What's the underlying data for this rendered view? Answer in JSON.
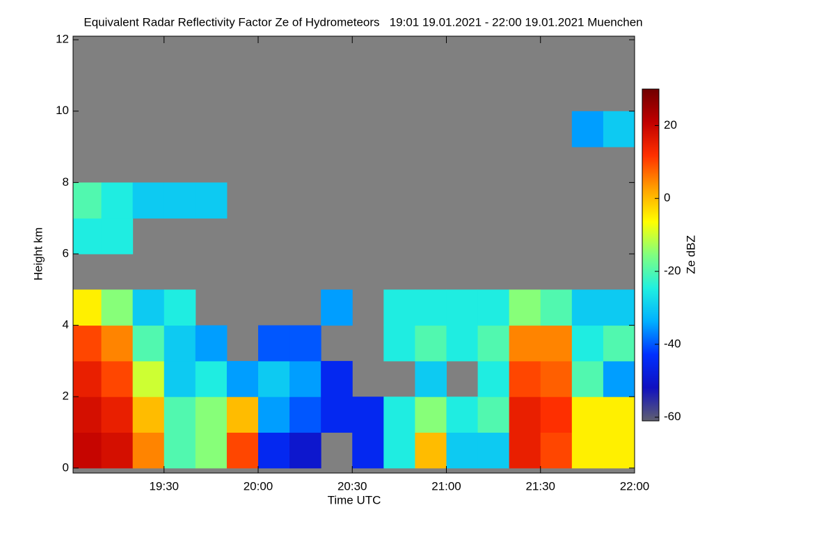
{
  "chart_data": {
    "type": "heatmap",
    "title": "Equivalent Radar Reflectivity Factor Ze of Hydrometeors   19:01 19.01.2021 - 22:00 19.01.2021 Muenchen",
    "x_label": "Time UTC",
    "y_label": "Height km",
    "colorbar_label": "Ze dBZ",
    "x_edges": [
      "19:01",
      "19:10",
      "19:20",
      "19:30",
      "19:40",
      "19:50",
      "20:00",
      "20:10",
      "20:20",
      "20:30",
      "20:40",
      "20:50",
      "21:00",
      "21:10",
      "21:20",
      "21:30",
      "21:40",
      "21:50",
      "22:00"
    ],
    "y_edges": [
      0,
      1,
      2,
      3,
      4,
      5,
      6,
      7,
      8,
      9,
      10,
      11,
      12
    ],
    "values": [
      [
        20,
        18,
        5,
        -20,
        -15,
        10,
        -45,
        -50,
        null,
        -45,
        -25,
        0,
        -30,
        -30,
        15,
        10,
        -5,
        -5
      ],
      [
        18,
        15,
        0,
        -20,
        -15,
        0,
        -35,
        -40,
        -45,
        -45,
        -25,
        -15,
        -25,
        -20,
        15,
        12,
        -5,
        -5
      ],
      [
        15,
        10,
        -10,
        -30,
        -25,
        -35,
        -30,
        -35,
        -45,
        null,
        null,
        -30,
        null,
        -25,
        10,
        8,
        -20,
        -35
      ],
      [
        10,
        5,
        -20,
        -30,
        -35,
        null,
        -40,
        -40,
        null,
        null,
        -25,
        -20,
        -25,
        -20,
        5,
        5,
        -25,
        -20
      ],
      [
        -5,
        -15,
        -30,
        -25,
        null,
        null,
        null,
        null,
        -35,
        null,
        -25,
        -25,
        -25,
        -25,
        -15,
        -20,
        -30,
        -30
      ],
      [
        null,
        null,
        null,
        null,
        null,
        null,
        null,
        null,
        null,
        null,
        null,
        null,
        null,
        null,
        null,
        null,
        null,
        null
      ],
      [
        -25,
        -25,
        null,
        null,
        null,
        null,
        null,
        null,
        null,
        null,
        null,
        null,
        null,
        null,
        null,
        null,
        null,
        null
      ],
      [
        -20,
        -25,
        -30,
        -30,
        -30,
        null,
        null,
        null,
        null,
        null,
        null,
        null,
        null,
        null,
        null,
        null,
        null,
        null
      ],
      [
        null,
        null,
        null,
        null,
        null,
        null,
        null,
        null,
        null,
        null,
        null,
        null,
        null,
        null,
        null,
        null,
        null,
        null
      ],
      [
        null,
        null,
        null,
        null,
        null,
        null,
        null,
        null,
        null,
        null,
        null,
        null,
        null,
        null,
        null,
        null,
        -35,
        -30
      ],
      [
        null,
        null,
        null,
        null,
        null,
        null,
        null,
        null,
        null,
        null,
        null,
        null,
        null,
        null,
        null,
        null,
        null,
        null
      ],
      [
        null,
        null,
        null,
        null,
        null,
        null,
        null,
        null,
        null,
        null,
        null,
        null,
        null,
        null,
        null,
        null,
        null,
        null
      ]
    ],
    "xlim": [
      "19:01",
      "22:00"
    ],
    "xticks": [
      "19:30",
      "20:00",
      "20:30",
      "21:00",
      "21:30",
      "22:00"
    ],
    "ylim": [
      -0.14,
      12.1
    ],
    "yticks": [
      0,
      2,
      4,
      6,
      8,
      10,
      12
    ],
    "clim": [
      -61,
      30
    ],
    "cticks": [
      -60,
      -40,
      -20,
      0,
      20
    ],
    "colormap": [
      "#606070",
      "#1010c0",
      "#0030ff",
      "#00b0ff",
      "#20f0e0",
      "#80ff80",
      "#ffff00",
      "#ffa000",
      "#ff3000",
      "#c00000",
      "#700000"
    ],
    "background": "#808080"
  }
}
